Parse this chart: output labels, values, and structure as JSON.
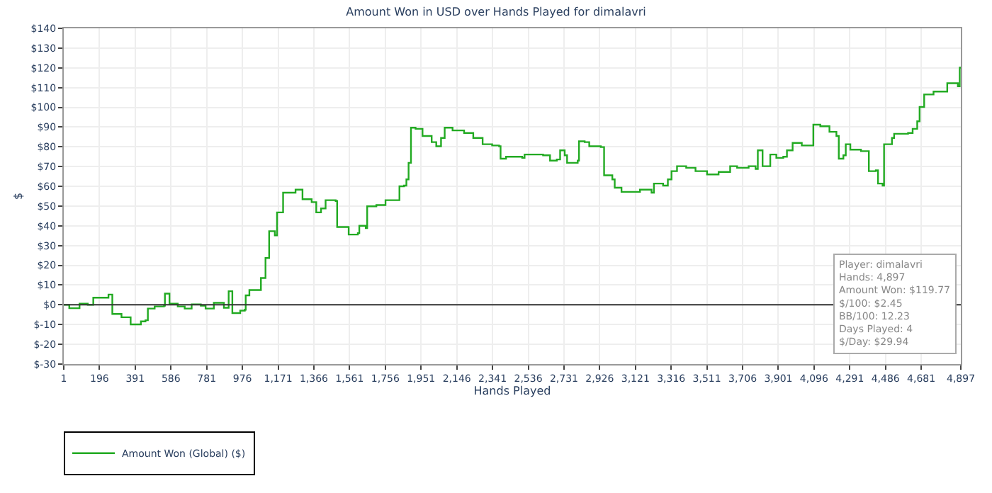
{
  "chart_data": {
    "type": "step",
    "title": "Amount Won in USD over Hands Played for dimalavri",
    "xlabel": "Hands Played",
    "ylabel": "$",
    "x": [
      1,
      31,
      69,
      87,
      132,
      162,
      245,
      266,
      316,
      366,
      422,
      447,
      460,
      497,
      548,
      553,
      573,
      578,
      623,
      661,
      699,
      749,
      775,
      820,
      875,
      901,
      918,
      921,
      964,
      989,
      994,
      1014,
      1064,
      1077,
      1102,
      1122,
      1153,
      1165,
      1198,
      1228,
      1266,
      1304,
      1354,
      1379,
      1405,
      1430,
      1485,
      1493,
      1556,
      1606,
      1614,
      1649,
      1657,
      1707,
      1757,
      1825,
      1833,
      1858,
      1871,
      1883,
      1896,
      1921,
      1959,
      2009,
      2034,
      2060,
      2080,
      2123,
      2186,
      2211,
      2236,
      2287,
      2339,
      2377,
      2385,
      2415,
      2503,
      2516,
      2617,
      2655,
      2692,
      2710,
      2735,
      2748,
      2806,
      2813,
      2844,
      2869,
      2932,
      2950,
      2995,
      3008,
      3045,
      3096,
      3146,
      3209,
      3222,
      3272,
      3298,
      3318,
      3348,
      3398,
      3449,
      3499,
      3512,
      3575,
      3638,
      3676,
      3739,
      3777,
      3789,
      3807,
      3815,
      3840,
      3857,
      3890,
      3928,
      3948,
      3979,
      4029,
      4084,
      4092,
      4130,
      4180,
      4218,
      4231,
      4256,
      4269,
      4294,
      4352,
      4395,
      4433,
      4445,
      4470,
      4478,
      4521,
      4533,
      4609,
      4634,
      4659,
      4672,
      4697,
      4748,
      4823,
      4881,
      4891,
      4897
    ],
    "series": [
      {
        "name": "Amount Won (Global) ($)",
        "color": "#22aa22",
        "values": [
          0,
          -1.7,
          -1.7,
          0.6,
          0,
          3.6,
          5.2,
          -4.6,
          -6.3,
          -9.9,
          -8.4,
          -7.8,
          -1.9,
          -0.8,
          -0.4,
          5.7,
          5.7,
          0.6,
          -0.8,
          -1.9,
          0.2,
          -0.4,
          -1.9,
          1,
          -1.5,
          6.9,
          6.9,
          -4.2,
          -2.9,
          -2.5,
          4.8,
          7.5,
          7.5,
          13.6,
          23.7,
          37.3,
          35.2,
          46.8,
          56.8,
          56.8,
          58.3,
          53.5,
          52,
          46.8,
          48.8,
          53,
          52.6,
          39.4,
          35.6,
          36.3,
          40,
          38.8,
          49.9,
          50.5,
          53,
          53,
          60,
          60.4,
          63.5,
          71.9,
          89.7,
          89.1,
          85.5,
          82.4,
          80.3,
          84.5,
          89.7,
          88.3,
          87,
          87,
          84.5,
          81.3,
          80.7,
          80.3,
          74,
          75,
          74.4,
          76.1,
          75.7,
          73,
          73.6,
          78.2,
          75.7,
          71.9,
          73,
          82.8,
          82.4,
          80.3,
          79.9,
          65.6,
          63.5,
          59.3,
          57.2,
          57.2,
          58.3,
          56.8,
          61.4,
          60.4,
          63.5,
          67.7,
          70.2,
          69.4,
          67.7,
          67.7,
          66,
          67.3,
          70.2,
          69.4,
          70.2,
          68.8,
          78.2,
          78.2,
          70.2,
          70.2,
          76.1,
          74.4,
          75,
          78.2,
          82,
          80.7,
          80.7,
          91.2,
          90.4,
          87.6,
          85.5,
          74,
          75.7,
          81.3,
          78.6,
          77.8,
          67.7,
          68.1,
          61.4,
          60.4,
          81.3,
          84.5,
          86.6,
          87,
          89.1,
          92.9,
          100.2,
          106.5,
          108,
          112.2,
          110.7,
          120.1,
          119.77
        ]
      }
    ],
    "xlim": [
      1,
      4897
    ],
    "xticks": [
      1,
      196,
      391,
      586,
      781,
      976,
      {
        "value": 1171,
        "label": "1,171"
      },
      {
        "value": 1366,
        "label": "1,366"
      },
      {
        "value": 1561,
        "label": "1,561"
      },
      {
        "value": 1756,
        "label": "1,756"
      },
      {
        "value": 1951,
        "label": "1,951"
      },
      {
        "value": 2146,
        "label": "2,146"
      },
      {
        "value": 2341,
        "label": "2,341"
      },
      {
        "value": 2536,
        "label": "2,536"
      },
      {
        "value": 2731,
        "label": "2,731"
      },
      {
        "value": 2926,
        "label": "2,926"
      },
      {
        "value": 3121,
        "label": "3,121"
      },
      {
        "value": 3316,
        "label": "3,316"
      },
      {
        "value": 3511,
        "label": "3,511"
      },
      {
        "value": 3706,
        "label": "3,706"
      },
      {
        "value": 3901,
        "label": "3,901"
      },
      {
        "value": 4096,
        "label": "4,096"
      },
      {
        "value": 4291,
        "label": "4,291"
      },
      {
        "value": 4486,
        "label": "4,486"
      },
      {
        "value": 4681,
        "label": "4,681"
      },
      {
        "value": 4897,
        "label": "4,897"
      }
    ],
    "ylim": [
      -30,
      140
    ],
    "yticks": [
      {
        "value": -30,
        "label": "$-30"
      },
      {
        "value": -20,
        "label": "$-20"
      },
      {
        "value": -10,
        "label": "$-10"
      },
      {
        "value": 0,
        "label": "$0"
      },
      {
        "value": 10,
        "label": "$10"
      },
      {
        "value": 20,
        "label": "$20"
      },
      {
        "value": 30,
        "label": "$30"
      },
      {
        "value": 40,
        "label": "$40"
      },
      {
        "value": 50,
        "label": "$50"
      },
      {
        "value": 60,
        "label": "$60"
      },
      {
        "value": 70,
        "label": "$70"
      },
      {
        "value": 80,
        "label": "$80"
      },
      {
        "value": 90,
        "label": "$90"
      },
      {
        "value": 100,
        "label": "$100"
      },
      {
        "value": 110,
        "label": "$110"
      },
      {
        "value": 120,
        "label": "$120"
      },
      {
        "value": 130,
        "label": "$130"
      },
      {
        "value": 140,
        "label": "$140"
      }
    ],
    "ref_lines": [
      {
        "axis": "y",
        "value": 0,
        "color": "#333333"
      }
    ],
    "annotations": [
      "Player: dimalavri\nHands: 4,897\nAmount Won: $119.77\n$/100: $2.45\nBB/100: 12.23\nDays Played: 4\n$/Day: $29.94"
    ],
    "grid": true,
    "legend": "bottom left",
    "marker": "none",
    "line_style": "solid"
  }
}
